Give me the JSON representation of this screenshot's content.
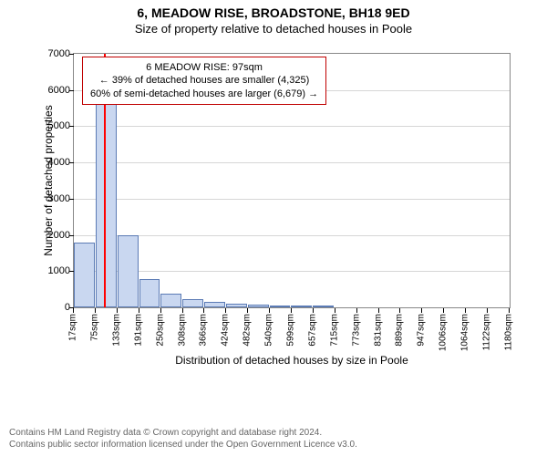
{
  "title": "6, MEADOW RISE, BROADSTONE, BH18 9ED",
  "subtitle": "Size of property relative to detached houses in Poole",
  "chart": {
    "type": "histogram",
    "ylabel": "Number of detached properties",
    "xlabel": "Distribution of detached houses by size in Poole",
    "ylim": [
      0,
      7000
    ],
    "yticks": [
      0,
      1000,
      2000,
      3000,
      4000,
      5000,
      6000,
      7000
    ],
    "x_bin_width_sqm": 58,
    "x_start_sqm": 17,
    "x_ticks_sqm": [
      17,
      75,
      133,
      191,
      250,
      308,
      366,
      424,
      482,
      540,
      599,
      657,
      715,
      773,
      831,
      889,
      947,
      1006,
      1064,
      1122,
      1180
    ],
    "x_tick_suffix": "sqm",
    "bar_color": "#c9d7f0",
    "bar_border_color": "#5b7bb5",
    "grid_color": "#d6d6d6",
    "border_color": "#888888",
    "bar_values": [
      1780,
      5750,
      2000,
      780,
      390,
      220,
      150,
      100,
      80,
      60,
      50,
      35,
      0,
      0,
      0,
      0,
      0,
      0,
      0,
      0
    ],
    "marker": {
      "sqm": 97,
      "color": "#ff0000"
    },
    "annotation": {
      "border_color": "#c00000",
      "line1": "6 MEADOW RISE: 97sqm",
      "line2": "← 39% of detached houses are smaller (4,325)",
      "line3": "60% of semi-detached houses are larger (6,679) →"
    }
  },
  "footer": {
    "line1": "Contains HM Land Registry data © Crown copyright and database right 2024.",
    "line2": "Contains public sector information licensed under the Open Government Licence v3.0."
  }
}
